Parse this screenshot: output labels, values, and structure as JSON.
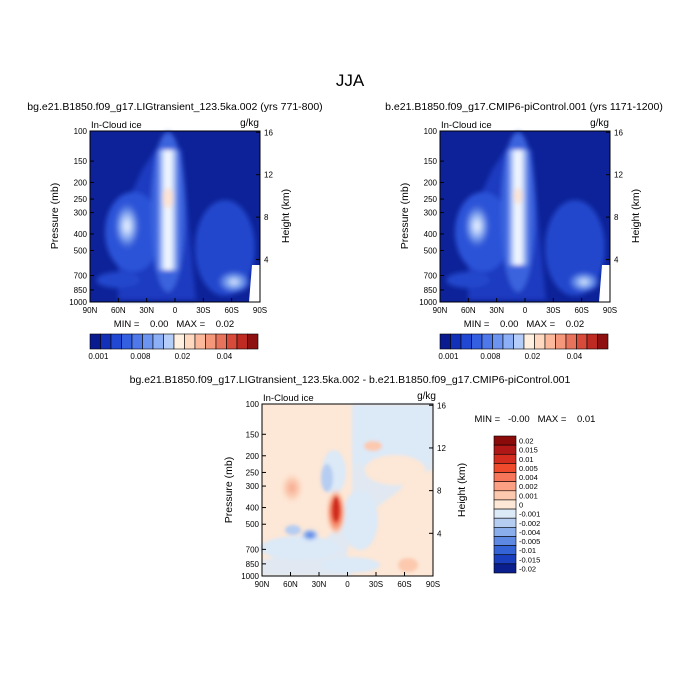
{
  "season": "JJA",
  "chart_data": [
    {
      "type": "heatmap",
      "title": "bg.e21.B1850.f09_g17.LIGtransient_123.5ka.002 (yrs 771-800)",
      "variable_label": "In-Cloud ice",
      "units_label": "g/kg",
      "ylabel": "Pressure (mb)",
      "y2label": "Height (km)",
      "x_ticks": [
        "90N",
        "60N",
        "30N",
        "0",
        "30S",
        "60S",
        "90S"
      ],
      "y_ticks": [
        "100",
        "150",
        "200",
        "250",
        "300",
        "400",
        "500",
        "700",
        "850",
        "1000"
      ],
      "y2_ticks": [
        "16",
        "12",
        "8",
        "4"
      ],
      "stats": "MIN =    0.00   MAX =    0.02",
      "colorbar_labels": [
        "0.001",
        "0.008",
        "0.02",
        "0.04"
      ]
    },
    {
      "type": "heatmap",
      "title": "b.e21.B1850.f09_g17.CMIP6-piControl.001 (yrs 1171-1200)",
      "variable_label": "In-Cloud ice",
      "units_label": "g/kg",
      "ylabel": "Pressure (mb)",
      "y2label": "Height (km)",
      "x_ticks": [
        "90N",
        "60N",
        "30N",
        "0",
        "30S",
        "60S",
        "90S"
      ],
      "y_ticks": [
        "100",
        "150",
        "200",
        "250",
        "300",
        "400",
        "500",
        "700",
        "850",
        "1000"
      ],
      "y2_ticks": [
        "16",
        "12",
        "8",
        "4"
      ],
      "stats": "MIN =    0.00   MAX =    0.02",
      "colorbar_labels": [
        "0.001",
        "0.008",
        "0.02",
        "0.04"
      ]
    },
    {
      "type": "heatmap",
      "title": "bg.e21.B1850.f09_g17.LIGtransient_123.5ka.002 - b.e21.B1850.f09_g17.CMIP6-piControl.001",
      "variable_label": "In-Cloud ice",
      "units_label": "g/kg",
      "ylabel": "Pressure (mb)",
      "y2label": "Height (km)",
      "x_ticks": [
        "90N",
        "60N",
        "30N",
        "0",
        "30S",
        "60S",
        "90S"
      ],
      "y_ticks": [
        "100",
        "150",
        "200",
        "250",
        "300",
        "400",
        "500",
        "700",
        "850",
        "1000"
      ],
      "y2_ticks": [
        "16",
        "12",
        "8",
        "4"
      ],
      "stats": "MIN =   -0.00   MAX =    0.01",
      "colorbar_labels": [
        "0.02",
        "0.015",
        "0.01",
        "0.005",
        "0.004",
        "0.002",
        "0.001",
        "0",
        "-0.001",
        "-0.002",
        "-0.004",
        "-0.005",
        "-0.01",
        "-0.015",
        "-0.02"
      ]
    }
  ],
  "colors": {
    "seq": [
      "#0a1b8f",
      "#1230b8",
      "#2048d2",
      "#345fe0",
      "#4f79ea",
      "#6d94f0",
      "#8dafF5",
      "#b5cdf9",
      "#fff0e0",
      "#ffd8c0",
      "#fcb89a",
      "#f5977a",
      "#e8735c",
      "#d84a3a",
      "#bf2a22",
      "#8e1010"
    ],
    "div": [
      "#8b0a0a",
      "#b01818",
      "#d42d20",
      "#f04a2c",
      "#f7765a",
      "#fba083",
      "#fcc9ae",
      "#fde7d6",
      "#dce9f7",
      "#b6cdf2",
      "#8aaeec",
      "#5e89e3",
      "#3463d6",
      "#1a3fbe",
      "#0a1e8e"
    ],
    "seq_labels_idx": [
      0,
      4,
      8,
      12
    ]
  }
}
